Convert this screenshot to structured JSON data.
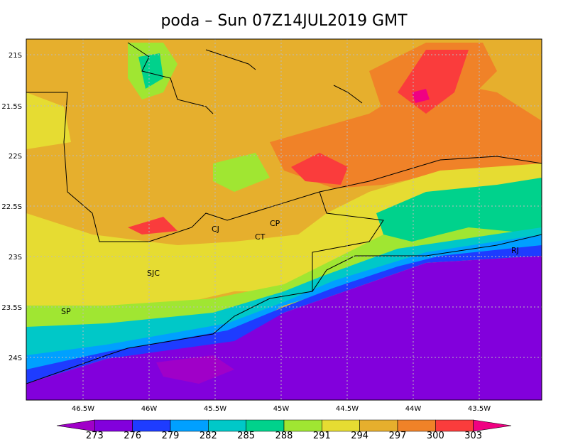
{
  "title": "poda – Sun 07Z14JUL2019 GMT",
  "lat_labels": [
    "21S",
    "21.5S",
    "22S",
    "22.5S",
    "23S",
    "23.5S",
    "24S"
  ],
  "lon_labels": [
    "46.5W",
    "46W",
    "45.5W",
    "45W",
    "44.5W",
    "44W",
    "43.5W"
  ],
  "places": [
    "CP",
    "CJ",
    "CT",
    "SJC",
    "SP",
    "RJ"
  ],
  "colorbar": {
    "levels": [
      273,
      276,
      279,
      282,
      285,
      288,
      291,
      294,
      297,
      300,
      303
    ],
    "colors": [
      "#a000c8",
      "#8200dc",
      "#1e3cff",
      "#00a0ff",
      "#00c8c8",
      "#00d28c",
      "#a0e632",
      "#e6dc32",
      "#e6af2d",
      "#f08228",
      "#fa3c3c",
      "#f00082"
    ]
  }
}
